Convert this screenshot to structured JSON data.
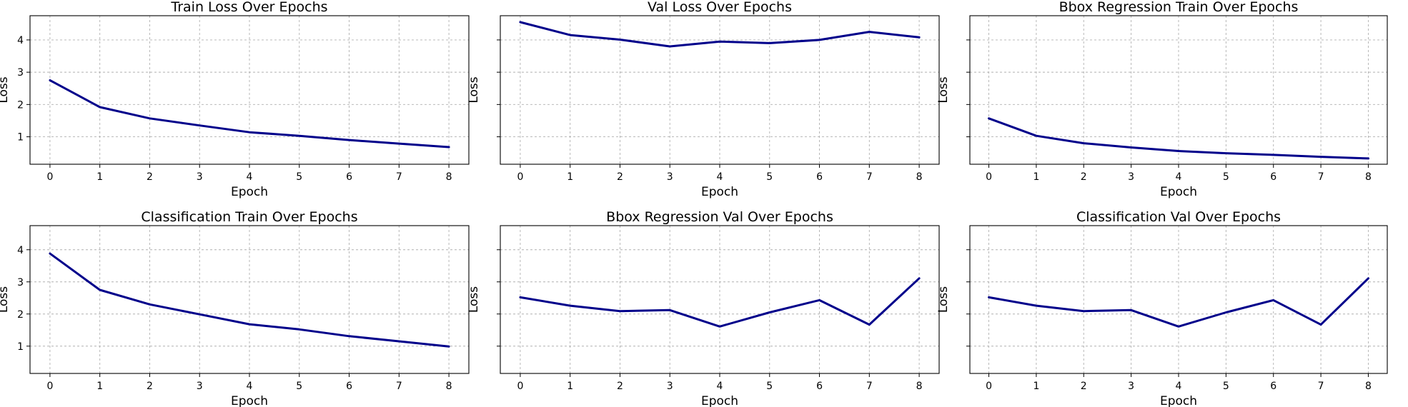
{
  "chart_data": [
    {
      "type": "line",
      "title": "Train Loss Over Epochs",
      "xlabel": "Epoch",
      "ylabel": "Loss",
      "x": [
        0,
        1,
        2,
        3,
        4,
        5,
        6,
        7,
        8
      ],
      "series": [
        {
          "values": [
            2.75,
            1.92,
            1.57,
            1.35,
            1.14,
            1.03,
            0.9,
            0.79,
            0.68
          ]
        }
      ],
      "xticks": [
        0,
        1,
        2,
        3,
        4,
        5,
        6,
        7,
        8
      ],
      "yticks": [
        1,
        2,
        3,
        4
      ],
      "yticklabels_visible": true,
      "xlim": [
        -0.4,
        8.4
      ],
      "ylim": [
        0.15,
        4.75
      ],
      "grid": true,
      "color": "#00008b"
    },
    {
      "type": "line",
      "title": "Val Loss Over Epochs",
      "xlabel": "Epoch",
      "ylabel": "Loss",
      "x": [
        0,
        1,
        2,
        3,
        4,
        5,
        6,
        7,
        8
      ],
      "series": [
        {
          "values": [
            4.55,
            4.15,
            4.01,
            3.8,
            3.95,
            3.9,
            4.0,
            4.25,
            4.08
          ]
        }
      ],
      "xticks": [
        0,
        1,
        2,
        3,
        4,
        5,
        6,
        7,
        8
      ],
      "yticks": [
        1,
        2,
        3,
        4
      ],
      "yticklabels_visible": false,
      "xlim": [
        -0.4,
        8.4
      ],
      "ylim": [
        0.15,
        4.75
      ],
      "grid": true,
      "color": "#00008b"
    },
    {
      "type": "line",
      "title": "Bbox Regression Train Over Epochs",
      "xlabel": "Epoch",
      "ylabel": "Loss",
      "x": [
        0,
        1,
        2,
        3,
        4,
        5,
        6,
        7,
        8
      ],
      "series": [
        {
          "values": [
            1.57,
            1.03,
            0.8,
            0.67,
            0.56,
            0.49,
            0.44,
            0.38,
            0.33
          ]
        }
      ],
      "xticks": [
        0,
        1,
        2,
        3,
        4,
        5,
        6,
        7,
        8
      ],
      "yticks": [
        1,
        2,
        3,
        4
      ],
      "yticklabels_visible": false,
      "xlim": [
        -0.4,
        8.4
      ],
      "ylim": [
        0.15,
        4.75
      ],
      "grid": true,
      "color": "#00008b"
    },
    {
      "type": "line",
      "title": "Classification Train Over Epochs",
      "xlabel": "Epoch",
      "ylabel": "Loss",
      "x": [
        0,
        1,
        2,
        3,
        4,
        5,
        6,
        7,
        8
      ],
      "series": [
        {
          "values": [
            3.88,
            2.75,
            2.3,
            1.99,
            1.68,
            1.52,
            1.31,
            1.15,
            0.99
          ]
        }
      ],
      "xticks": [
        0,
        1,
        2,
        3,
        4,
        5,
        6,
        7,
        8
      ],
      "yticks": [
        1,
        2,
        3,
        4
      ],
      "yticklabels_visible": true,
      "xlim": [
        -0.4,
        8.4
      ],
      "ylim": [
        0.15,
        4.75
      ],
      "grid": true,
      "color": "#00008b"
    },
    {
      "type": "line",
      "title": "Bbox Regression Val Over Epochs",
      "xlabel": "Epoch",
      "ylabel": "Loss",
      "x": [
        0,
        1,
        2,
        3,
        4,
        5,
        6,
        7,
        8
      ],
      "series": [
        {
          "values": [
            2.52,
            2.26,
            2.09,
            2.12,
            1.61,
            2.05,
            2.43,
            1.67,
            3.11
          ]
        }
      ],
      "xticks": [
        0,
        1,
        2,
        3,
        4,
        5,
        6,
        7,
        8
      ],
      "yticks": [
        1,
        2,
        3,
        4
      ],
      "yticklabels_visible": false,
      "xlim": [
        -0.4,
        8.4
      ],
      "ylim": [
        0.15,
        4.75
      ],
      "grid": true,
      "color": "#00008b"
    },
    {
      "type": "line",
      "title": "Classification Val Over Epochs",
      "xlabel": "Epoch",
      "ylabel": "Loss",
      "x": [
        0,
        1,
        2,
        3,
        4,
        5,
        6,
        7,
        8
      ],
      "series": [
        {
          "values": [
            2.52,
            2.26,
            2.09,
            2.12,
            1.61,
            2.05,
            2.43,
            1.67,
            3.11
          ]
        }
      ],
      "xticks": [
        0,
        1,
        2,
        3,
        4,
        5,
        6,
        7,
        8
      ],
      "yticks": [
        1,
        2,
        3,
        4
      ],
      "yticklabels_visible": false,
      "xlim": [
        -0.4,
        8.4
      ],
      "ylim": [
        0.15,
        4.75
      ],
      "grid": true,
      "color": "#00008b"
    }
  ]
}
